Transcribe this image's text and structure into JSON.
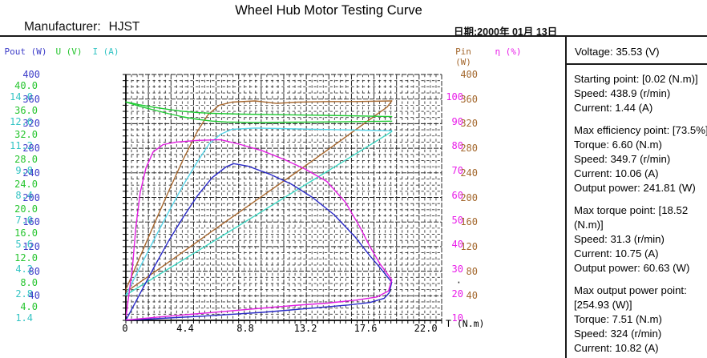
{
  "header": {
    "manufacturer_label": "Manufacturer:",
    "manufacturer_value": "HJST",
    "date": "日期:2000年 01月 13日"
  },
  "side_panel": {
    "voltage": "Voltage: 35.53 (V)",
    "lines": [
      "Starting point: [0.02 (N.m)]",
      "Speed: 438.9 (r/min)",
      "Current: 1.44 (A)",
      "",
      "Max efficiency point: [73.5%]",
      "Torque: 6.60 (N.m)",
      "Speed: 349.7 (r/min)",
      "Current: 10.06 (A)",
      "Output power: 241.81 (W)",
      "",
      "Max torque point: [18.52",
      "(N.m)]",
      "Speed: 31.3 (r/min)",
      "Current: 10.75 (A)",
      "Output power: 60.63 (W)",
      "",
      "Max output power point:",
      "[254.93 (W)]",
      "Torque: 7.51 (N.m)",
      "Speed: 324 (r/min)",
      "Current: 10.82 (A)"
    ]
  },
  "chart_data": {
    "type": "line",
    "title": "Wheel Hub Motor Testing Curve",
    "grid": true,
    "x_axis": {
      "label": "T (N.m)",
      "min": 0,
      "max": 22,
      "ticks": [
        "0",
        "4.4",
        "8.8",
        "13.2",
        "17.6",
        "22.0"
      ]
    },
    "left_axes": [
      {
        "label": "Pout (W)",
        "unit": "W",
        "max": 400,
        "color": "#3c3cc8",
        "tick_labels": [
          "400",
          "360",
          "320",
          "280",
          "240",
          "200",
          "160",
          "120",
          "80",
          "40"
        ]
      },
      {
        "label": "U (V)",
        "unit": "V",
        "max": 40,
        "color": "#27c52f",
        "tick_labels": [
          "40.0",
          "36.0",
          "32.0",
          "28.0",
          "24.0",
          "20.0",
          "16.0",
          "12.0",
          "8.0",
          "4.0"
        ]
      },
      {
        "label": "I (A)",
        "unit": "A",
        "max": 14,
        "color": "#34c4c4",
        "tick_labels": [
          "14.0",
          "12.6",
          "11.2",
          "9.8",
          "8.4",
          "7.0",
          "5.6",
          "4.2",
          "2.8",
          "1.4"
        ]
      }
    ],
    "right_axes": [
      {
        "label": "Pin (W)",
        "unit": "W",
        "max": 400,
        "color": "#a4682e",
        "tick_labels": [
          "400",
          "360",
          "320",
          "280",
          "240",
          "200",
          "160",
          "120",
          "80",
          "40"
        ]
      },
      {
        "label": "η (%)",
        "unit": "%",
        "max": 100,
        "color": "#e81ce8",
        "tick_labels": [
          "100",
          "90",
          "80",
          "70",
          "60",
          "50",
          "40",
          "30",
          "20",
          "10"
        ]
      }
    ],
    "stray_dot": {
      "column": "eta",
      "row_index": 8,
      "char": "·"
    },
    "key_points": {
      "voltage_v": 35.53,
      "starting_point": {
        "torque_nm": 0.02,
        "speed_rpm": 438.9,
        "current_a": 1.44
      },
      "max_efficiency_point": {
        "efficiency_pct": 73.5,
        "torque_nm": 6.6,
        "speed_rpm": 349.7,
        "current_a": 10.06,
        "output_power_w": 241.81
      },
      "max_torque_point": {
        "torque_nm": 18.52,
        "speed_rpm": 31.3,
        "current_a": 10.75,
        "output_power_w": 60.63
      },
      "max_output_power_point": {
        "output_power_w": 254.93,
        "torque_nm": 7.51,
        "speed_rpm": 324,
        "current_a": 10.82
      }
    },
    "series": [
      {
        "name": "input-power-load",
        "axis": "Pin (W)",
        "axis_max": 400,
        "color": "#a8682e",
        "points": [
          [
            0,
            50
          ],
          [
            1,
            104
          ],
          [
            2,
            158
          ],
          [
            3,
            211
          ],
          [
            4,
            262
          ],
          [
            5,
            308
          ],
          [
            5.7,
            334
          ],
          [
            6.5,
            350
          ],
          [
            7.4,
            355
          ],
          [
            9,
            357
          ],
          [
            10.5,
            353
          ],
          [
            12,
            355
          ],
          [
            14,
            356
          ],
          [
            16,
            356
          ],
          [
            18.52,
            357
          ]
        ]
      },
      {
        "name": "input-power-return",
        "axis": "Pin (W)",
        "axis_max": 400,
        "color": "#a8682e",
        "points": [
          [
            18.52,
            357
          ],
          [
            18.2,
            347
          ],
          [
            17,
            327
          ],
          [
            15,
            293
          ],
          [
            12,
            243
          ],
          [
            9,
            194
          ],
          [
            6,
            145
          ],
          [
            3,
            95
          ],
          [
            0,
            46
          ]
        ]
      },
      {
        "name": "voltage-return",
        "axis": "U (V)",
        "axis_max": 40,
        "color": "#1ecb32",
        "points": [
          [
            0,
            35.53
          ],
          [
            0.5,
            35.3
          ],
          [
            1,
            35.05
          ],
          [
            2,
            34.65
          ],
          [
            3,
            34.3
          ],
          [
            4,
            34.0
          ],
          [
            5,
            33.8
          ],
          [
            6,
            33.68
          ],
          [
            8,
            33.55
          ],
          [
            11,
            33.45
          ],
          [
            14,
            33.35
          ],
          [
            18.52,
            33.15
          ]
        ]
      },
      {
        "name": "voltage-load",
        "axis": "U (V)",
        "axis_max": 40,
        "color": "#1ecb32",
        "points": [
          [
            0,
            35.53
          ],
          [
            0.5,
            35.15
          ],
          [
            1,
            34.8
          ],
          [
            2,
            34.2
          ],
          [
            3,
            33.62
          ],
          [
            4,
            33.1
          ],
          [
            5,
            32.7
          ],
          [
            6,
            32.42
          ],
          [
            7,
            32.28
          ],
          [
            9,
            32.2
          ],
          [
            12,
            32.25
          ],
          [
            15,
            32.3
          ],
          [
            18.52,
            32.4
          ]
        ]
      },
      {
        "name": "current-load",
        "axis": "I (A)",
        "axis_max": 14,
        "color": "#58d4e8",
        "points": [
          [
            0,
            1.44
          ],
          [
            1,
            3.05
          ],
          [
            2,
            4.65
          ],
          [
            3,
            6.2
          ],
          [
            4,
            7.7
          ],
          [
            5,
            9.05
          ],
          [
            5.8,
            10.05
          ],
          [
            6.6,
            10.6
          ],
          [
            7.4,
            10.88
          ],
          [
            9,
            10.95
          ],
          [
            12,
            10.9
          ],
          [
            15,
            10.85
          ],
          [
            18.52,
            10.8
          ]
        ]
      },
      {
        "name": "current-return",
        "axis": "I (A)",
        "axis_max": 14,
        "color": "#3cd8c4",
        "points": [
          [
            18.52,
            10.75
          ],
          [
            15,
            8.97
          ],
          [
            12,
            7.47
          ],
          [
            9,
            5.96
          ],
          [
            6,
            4.45
          ],
          [
            3,
            2.95
          ],
          [
            0,
            1.44
          ]
        ]
      },
      {
        "name": "output-power-load",
        "axis": "Pout (W)",
        "axis_max": 400,
        "color": "#2a2ac8",
        "points": [
          [
            0.02,
            1
          ],
          [
            0.5,
            22
          ],
          [
            1,
            44
          ],
          [
            2,
            88
          ],
          [
            3,
            130
          ],
          [
            4,
            168
          ],
          [
            5,
            203
          ],
          [
            6,
            232
          ],
          [
            7,
            250
          ],
          [
            7.51,
            255
          ],
          [
            8.5,
            251
          ],
          [
            10,
            238
          ],
          [
            11.5,
            222
          ],
          [
            13,
            200
          ],
          [
            14.5,
            172
          ],
          [
            16,
            135
          ],
          [
            17,
            105
          ],
          [
            17.8,
            83
          ],
          [
            18.52,
            62
          ]
        ]
      },
      {
        "name": "output-power-return",
        "axis": "Pout (W)",
        "axis_max": 400,
        "color": "#2a2ac8",
        "points": [
          [
            18.52,
            62
          ],
          [
            18.35,
            45
          ],
          [
            18,
            36
          ],
          [
            17,
            29
          ],
          [
            15.5,
            25
          ],
          [
            13.5,
            21
          ],
          [
            11.5,
            17
          ],
          [
            9.5,
            13
          ],
          [
            7.5,
            10
          ],
          [
            5.5,
            7
          ],
          [
            3.5,
            4.5
          ],
          [
            1.5,
            2
          ],
          [
            0.02,
            0.5
          ]
        ]
      },
      {
        "name": "efficiency-load",
        "axis": "η (%)",
        "axis_max": 100,
        "color": "#e21ee2",
        "points": [
          [
            0.02,
            2
          ],
          [
            0.2,
            10
          ],
          [
            0.45,
            21
          ],
          [
            0.7,
            38
          ],
          [
            1,
            52
          ],
          [
            1.4,
            62
          ],
          [
            1.9,
            68.5
          ],
          [
            2.6,
            71.5
          ],
          [
            3.5,
            72.5
          ],
          [
            5,
            73.2
          ],
          [
            6.6,
            73.5
          ],
          [
            8,
            71.5
          ],
          [
            9.5,
            69
          ],
          [
            11,
            65.5
          ],
          [
            12.5,
            61.5
          ],
          [
            14,
            56.5
          ],
          [
            15.3,
            48
          ],
          [
            16.3,
            38
          ],
          [
            17,
            30
          ],
          [
            17.7,
            23
          ],
          [
            18.52,
            16.5
          ]
        ]
      },
      {
        "name": "efficiency-return",
        "axis": "η (%)",
        "axis_max": 100,
        "color": "#e21ee2",
        "points": [
          [
            18.52,
            16.5
          ],
          [
            18.3,
            12
          ],
          [
            17.5,
            9.5
          ],
          [
            16,
            8.2
          ],
          [
            14,
            7
          ],
          [
            12,
            6.2
          ],
          [
            10,
            5.2
          ],
          [
            8,
            4.2
          ],
          [
            6,
            3.2
          ],
          [
            4,
            2.2
          ],
          [
            2,
            1.2
          ],
          [
            0.5,
            0.4
          ],
          [
            0.02,
            0.2
          ]
        ]
      }
    ]
  }
}
